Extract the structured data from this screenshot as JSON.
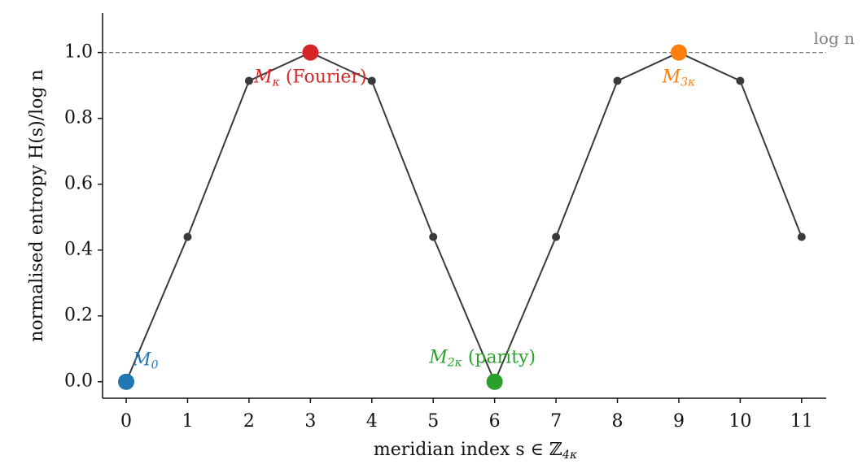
{
  "chart_data": {
    "type": "line",
    "xlabel": {
      "text": "meridian index s ∈ ℤ",
      "sub": "4κ"
    },
    "ylabel": "normalised entropy H(s)/log n",
    "x": [
      0,
      1,
      2,
      3,
      4,
      5,
      6,
      7,
      8,
      9,
      10,
      11
    ],
    "series": [
      {
        "color": "#3a3a3a",
        "values": [
          0,
          0.44,
          0.914,
          1,
          0.914,
          0.44,
          0,
          0.44,
          0.914,
          1,
          0.914,
          0.44
        ]
      }
    ],
    "highlights": [
      {
        "x": 0,
        "value": 0,
        "color": "#1f77b4",
        "base": "M",
        "sub": "0",
        "suffix": ""
      },
      {
        "x": 3,
        "value": 1,
        "color": "#d62728",
        "base": "M",
        "sub": "κ",
        "suffix": " (Fourier)"
      },
      {
        "x": 6,
        "value": 0,
        "color": "#2ca02c",
        "base": "M",
        "sub": "2κ",
        "suffix": " (parity)"
      },
      {
        "x": 9,
        "value": 1,
        "color": "#ff7f0e",
        "base": "M",
        "sub": "3κ",
        "suffix": ""
      }
    ],
    "reference": {
      "value": 1,
      "label": "log n",
      "color": "#808080"
    },
    "xlim": [
      -0.385,
      11.4
    ],
    "ylim": [
      -0.05,
      1.12
    ],
    "xticks": [
      0,
      1,
      2,
      3,
      4,
      5,
      6,
      7,
      8,
      9,
      10,
      11
    ],
    "yticks": [
      {
        "value": 0,
        "label": "0.0"
      },
      {
        "value": 0.2,
        "label": "0.2"
      },
      {
        "value": 0.4,
        "label": "0.4"
      },
      {
        "value": 0.6,
        "label": "0.6"
      },
      {
        "value": 0.8,
        "label": "0.8"
      },
      {
        "value": 1,
        "label": "1.0"
      }
    ]
  }
}
